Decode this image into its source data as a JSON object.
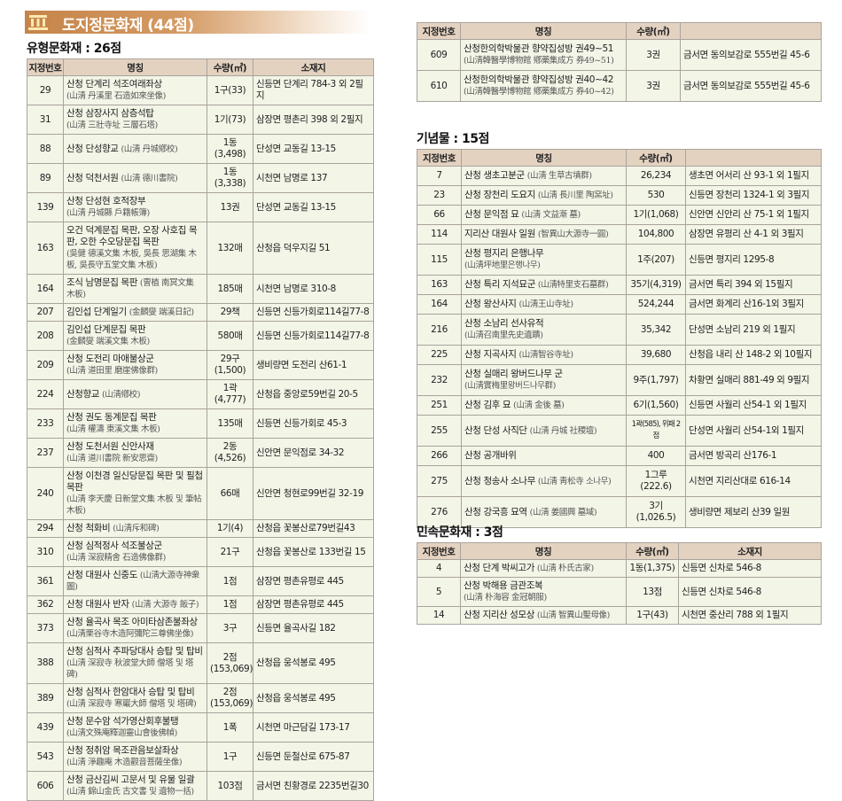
{
  "banner": {
    "title": "도지정문화재 (44점)",
    "icon": "building-columns-icon",
    "color": "#c58449"
  },
  "colors": {
    "header_bg": "#e4d2c1",
    "row_bg": "#f3f5e7",
    "border": "#a9a39c"
  },
  "tangible": {
    "title": "유형문화재 : 26점",
    "headers": [
      "지정번호",
      "명칭",
      "수량(㎡)",
      "소재지"
    ],
    "rows": [
      {
        "no": "29",
        "name": "산청 단계리 석조여래좌상",
        "hanja": "(山淸 丹溪里 石造如來坐像)",
        "wrap": true,
        "qty": "1구(33)",
        "loc": "신등면 단계리 784-3 외 2필지"
      },
      {
        "no": "31",
        "name": "산청 삼장사지 삼층석탑",
        "hanja": "(山淸 三壯寺址 三層石塔)",
        "wrap": true,
        "qty": "1기(73)",
        "loc": "삼장면 평촌리 398 외 2필지"
      },
      {
        "no": "88",
        "name": "산청 단성향교",
        "hanja": "(山淸 丹城鄕校)",
        "wrap": false,
        "qty": "1동(3,498)",
        "loc": "단성면 교동길 13-15"
      },
      {
        "no": "89",
        "name": "산청 덕천서원",
        "hanja": "(山淸 德川書院)",
        "wrap": false,
        "qty": "1동(3,338)",
        "loc": "시천면 남명로 137"
      },
      {
        "no": "139",
        "name": "산청 단성현 호적장부",
        "hanja": "(山淸 丹城縣 戶籍帳簿)",
        "wrap": true,
        "qty": "13권",
        "loc": "단성면 교동길 13-15"
      },
      {
        "no": "163",
        "name": "오건 덕계문집 목판, 오장 사호집 목판, 오한 수오당문집 목판",
        "hanja": "(吳健 德溪文集 木板, 吳長 思湖集 木板, 吳長守五堂文集 木板)",
        "wrap": true,
        "qty": "132매",
        "loc": "산청읍 덕우지길 51"
      },
      {
        "no": "164",
        "name": "조식 남명문집 목판",
        "hanja": "(曺植 南冥文集 木板)",
        "wrap": false,
        "qty": "185매",
        "loc": "시천면 남명로 310-8"
      },
      {
        "no": "207",
        "name": "김인섭 단계일기",
        "hanja": "(金麟燮 端溪日記)",
        "wrap": false,
        "qty": "29책",
        "loc": "신등면 신등가회로114길77-8"
      },
      {
        "no": "208",
        "name": "김인섭 단계문집 목판",
        "hanja": "(金麟燮 端溪文集 木板)",
        "wrap": true,
        "qty": "580매",
        "loc": "신등면 신등가회로114길77-8"
      },
      {
        "no": "209",
        "name": "산청 도전리 마애불상군",
        "hanja": "(山淸 道田里 磨崖佛像群)",
        "wrap": true,
        "qty": "29구 (1,500)",
        "loc": "생비량면 도전리 산61-1"
      },
      {
        "no": "224",
        "name": "산청향교",
        "hanja": "(山淸鄕校)",
        "wrap": false,
        "qty": "1곽(4,777)",
        "loc": "산청읍 중앙로59번길 20-5"
      },
      {
        "no": "233",
        "name": "산청 권도 동계문집 목판",
        "hanja": "(山淸 權濤 東溪文集 木板)",
        "wrap": true,
        "qty": "135매",
        "loc": "신등면 신등가회로 45-3"
      },
      {
        "no": "237",
        "name": "산청 도천서원 신안사재",
        "hanja": "(山淸 道川書院 新安思齋)",
        "wrap": true,
        "qty": "2동(4,526)",
        "loc": "신안면 문익점로 34-32"
      },
      {
        "no": "240",
        "name": "산청 이천경 일신당문집 목판 및 필첩 목판",
        "hanja": "(山淸 李天慶 日新堂文集 木板 및 筆帖 木板)",
        "wrap": true,
        "qty": "66매",
        "loc": "신안면 청현로99번길 32-19"
      },
      {
        "no": "294",
        "name": "산청 척화비",
        "hanja": "(山淸斥和碑)",
        "wrap": false,
        "qty": "1기(4)",
        "loc": "산청읍 꽃봉산로79번길43"
      },
      {
        "no": "310",
        "name": "산청 심적정사 석조불상군",
        "hanja": "(山淸 深寂精舍 石造佛像群)",
        "wrap": true,
        "qty": "21구",
        "loc": "산청읍 꽃봉산로 133번길 15"
      },
      {
        "no": "361",
        "name": "산청 대원사 신중도",
        "hanja": "(山淸大源寺神衆圖)",
        "wrap": false,
        "qty": "1점",
        "loc": "삼장면 평촌유평로 445"
      },
      {
        "no": "362",
        "name": "산청 대원사 반자",
        "hanja": "(山淸 大源寺 飯子)",
        "wrap": false,
        "qty": "1점",
        "loc": "삼장면 평촌유평로 445"
      },
      {
        "no": "373",
        "name": "산청 율곡사 목조 아미타삼존불좌상",
        "hanja": "(山淸栗谷寺木造阿彌陀三尊佛坐像)",
        "wrap": true,
        "qty": "3구",
        "loc": "신등면 율곡사길 182"
      },
      {
        "no": "388",
        "name": "산청 심적사 추파당대사 승탑 및 탑비",
        "hanja": "(山淸 深寂寺 秋波堂大師 僧塔 및 塔碑)",
        "wrap": true,
        "qty": "2점 (153,069)",
        "loc": "산청읍 웅석봉로 495"
      },
      {
        "no": "389",
        "name": "산청 심적사 한암대사 승탑 및 탑비",
        "hanja": "(山淸 深寂寺 寒巖大師 僧塔 및 塔碑)",
        "wrap": true,
        "qty": "2점 (153,069)",
        "loc": "산청읍 웅석봉로 495"
      },
      {
        "no": "439",
        "name": "산청 문수암 석가영산회후불탱",
        "hanja": "(山淸文殊庵釋迦靈山會後佛幀)",
        "wrap": true,
        "qty": "1폭",
        "loc": "시천면 마근담길 173-17"
      },
      {
        "no": "543",
        "name": "산청 정취암 목조관음보살좌상",
        "hanja": "(山淸 淨趣庵 木造觀音菩薩坐像)",
        "wrap": true,
        "qty": "1구",
        "loc": "신등면 둔철산로 675-87"
      },
      {
        "no": "606",
        "name": "산청 금산김씨 고문서 및 유물 일괄",
        "hanja": "(山淸 錦山金氏 古文書 및 遺物一括)",
        "wrap": true,
        "qty": "103점",
        "loc": "금서면 친황경로 2235번길30"
      }
    ]
  },
  "tangible_cont": {
    "headers": [
      "지정번호",
      "명칭",
      "수량(㎡)",
      ""
    ],
    "rows": [
      {
        "no": "609",
        "name": "산청한의학박물관 향약집성방 권49~51",
        "hanja": "(山淸韓醫學博物館 鄕藥集成方 券49~51)",
        "wrap": true,
        "qty": "3권",
        "loc": "금서면 동의보감로 555번길 45-6"
      },
      {
        "no": "610",
        "name": "산청한의학박물관 향약집성방 권40~42",
        "hanja": "(山淸韓醫學博物館 鄕藥集成方 券40~42)",
        "wrap": true,
        "qty": "3권",
        "loc": "금서면 동의보감로 555번길 45-6"
      }
    ]
  },
  "monument": {
    "title": "기념물 : 15점",
    "headers": [
      "지정번호",
      "명칭",
      "수량(㎡)",
      ""
    ],
    "rows": [
      {
        "no": "7",
        "name": "산청 생초고분군",
        "hanja": "(山淸 生草古墳群)",
        "wrap": false,
        "qty": "26,234",
        "loc": "생초면 어서리 산 93-1 외 1필지"
      },
      {
        "no": "23",
        "name": "산청 장천리 도요지",
        "hanja": "(山淸 長川里 陶窯址)",
        "wrap": false,
        "qty": "530",
        "loc": "신등면 장천리 1324-1 외 3필지"
      },
      {
        "no": "66",
        "name": "산청 문익점 묘",
        "hanja": "(山淸 文益漸 墓)",
        "wrap": false,
        "qty": "1기(1,068)",
        "loc": "신안면 신안리 산 75-1 외 1필지"
      },
      {
        "no": "114",
        "name": "지리산 대원사 일원",
        "hanja": "(智異山大源寺一圓)",
        "wrap": false,
        "qty": "104,800",
        "loc": "삼장면 유평리 산 4-1 외 3필지"
      },
      {
        "no": "115",
        "name": "산청 평지리 은행나무",
        "hanja": "(山淸坪地里은행나무)",
        "wrap": true,
        "qty": "1주(207)",
        "loc": "신등면 평지리 1295-8"
      },
      {
        "no": "163",
        "name": "산청 특리 지석묘군",
        "hanja": "(山淸特里支石墓群)",
        "wrap": false,
        "qty": "35기(4,319)",
        "loc": "금서면 특리 394 외 15필지"
      },
      {
        "no": "164",
        "name": "산청 왕산사지",
        "hanja": "(山淸王山寺址)",
        "wrap": false,
        "qty": "524,244",
        "loc": "금서면 화계리 산16-1외 3필지"
      },
      {
        "no": "216",
        "name": "산청 소남리 선사유적",
        "hanja": "(山淸召南里先史遺蹟)",
        "wrap": true,
        "qty": "35,342",
        "loc": "단성면 소남리 219 외 1필지"
      },
      {
        "no": "225",
        "name": "산청 지곡사지",
        "hanja": "(山淸智谷寺址)",
        "wrap": false,
        "qty": "39,680",
        "loc": "산청읍 내리 산 148-2 외 10필지"
      },
      {
        "no": "232",
        "name": "산청 실매리 왕버드나무 군",
        "hanja": "(山淸實梅里왕버드나무群)",
        "wrap": true,
        "qty": "9주(1,797)",
        "loc": "차황면 실매리 881-49 외 9필지"
      },
      {
        "no": "251",
        "name": "산청 김후 묘",
        "hanja": "(山淸 金後 墓)",
        "wrap": false,
        "qty": "6기(1,560)",
        "loc": "신등면 사월리 산54-1 외 1필지"
      },
      {
        "no": "255",
        "name": "산청 단성 사직단",
        "hanja": "(山淸 丹城 社稷壇)",
        "wrap": false,
        "qty": "1곽(585), 위패 2점",
        "loc": "단성면 사월리 산54-1외 1필지"
      },
      {
        "no": "266",
        "name": "산청 공개바위",
        "hanja": "",
        "wrap": false,
        "qty": "400",
        "loc": "금서면 방곡리 산176-1"
      },
      {
        "no": "275",
        "name": "산청 청송사 소나무",
        "hanja": "(山淸 靑松寺 소나무)",
        "wrap": false,
        "qty": "1그루(222.6)",
        "loc": "시천면 지리산대로 616-14"
      },
      {
        "no": "276",
        "name": "산청 강국흥 묘역",
        "hanja": "(山淸 姜國興 墓域)",
        "wrap": false,
        "qty": "3기(1,026.5)",
        "loc": "생비량면 제보리 산39 일원"
      }
    ]
  },
  "folk": {
    "title": "민속문화재 : 3점",
    "headers": [
      "지정번호",
      "명칭",
      "수량(㎡)",
      "소재지"
    ],
    "rows": [
      {
        "no": "4",
        "name": "산청 단계 박씨고가",
        "hanja": "(山淸 朴氏古家)",
        "wrap": false,
        "qty": "1동(1,375)",
        "loc": "신등면 신차로 546-8"
      },
      {
        "no": "5",
        "name": "산청 박해용 금관조복",
        "hanja": "(山淸 朴海容 金冠朝服)",
        "wrap": true,
        "qty": "13점",
        "loc": "신등면 신차로 546-8"
      },
      {
        "no": "14",
        "name": "산청 지리산 성모상",
        "hanja": "(山淸 智異山聖母像)",
        "wrap": false,
        "qty": "1구(43)",
        "loc": "시천면 중산리 788 외 1필지"
      }
    ]
  }
}
